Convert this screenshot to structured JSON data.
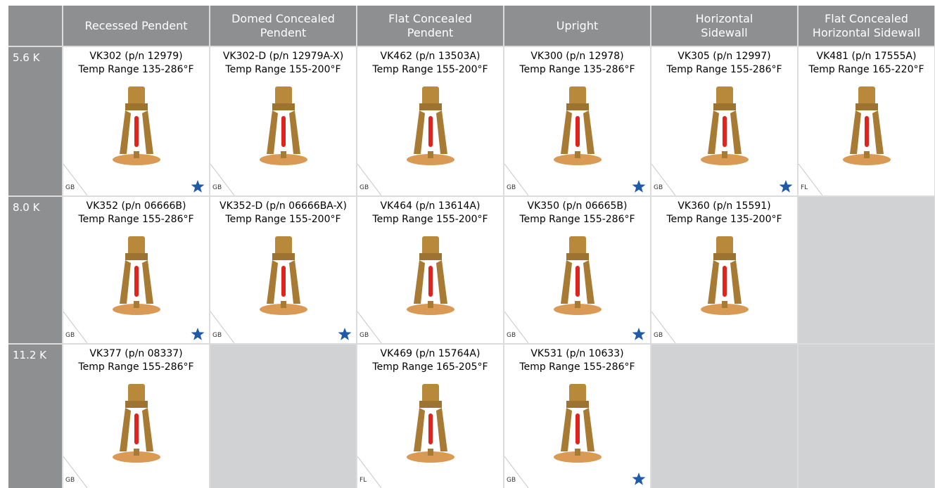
{
  "table": {
    "columns": [
      "Recessed Pendent",
      "Domed Concealed Pendent",
      "Flat Concealed Pendent",
      "Upright",
      "Horizontal Sidewall",
      "Flat Concealed Horizontal Sidewall"
    ],
    "rows": [
      {
        "label": "5.6 K",
        "cells": [
          {
            "model": "VK302 (p/n 12979)",
            "temp": "Temp Range 135-286°F",
            "tag": "GB"
          },
          {
            "model": "VK302-D (p/n 12979A-X)",
            "temp": "Temp Range 155-200°F",
            "tag": "GB"
          },
          {
            "model": "VK462 (p/n 13503A)",
            "temp": "Temp Range 155-200°F",
            "tag": "GB"
          },
          {
            "model": "VK300 (p/n 12978)",
            "temp": "Temp Range 135-286°F",
            "tag": "GB"
          },
          {
            "model": "VK305 (p/n 12997)",
            "temp": "Temp Range 155-286°F",
            "tag": "GB"
          },
          {
            "model": "VK481 (p/n 17555A)",
            "temp": "Temp Range 165-220°F",
            "tag": "FL"
          }
        ]
      },
      {
        "label": "8.0 K",
        "cells": [
          {
            "model": "VK352 (p/n 06666B)",
            "temp": "Temp Range 155-286°F",
            "tag": "GB"
          },
          {
            "model": "VK352-D (p/n 06666BA-X)",
            "temp": "Temp Range 155-200°F",
            "tag": "GB"
          },
          {
            "model": "VK464 (p/n 13614A)",
            "temp": "Temp Range 155-200°F",
            "tag": "GB"
          },
          {
            "model": "VK350 (p/n 06665B)",
            "temp": "Temp Range 155-286°F",
            "tag": "GB"
          },
          {
            "model": "VK360 (p/n 15591)",
            "temp": "Temp Range 135-200°F",
            "tag": "GB"
          },
          null
        ]
      },
      {
        "label": "11.2 K",
        "cells": [
          {
            "model": "VK377 (p/n 08337)",
            "temp": "Temp Range 155-286°F",
            "tag": "GB"
          },
          null,
          {
            "model": "VK469 (p/n 15764A)",
            "temp": "Temp Range 165-205°F",
            "tag": "FL"
          },
          {
            "model": "VK531 (p/n 10633)",
            "temp": "Temp Range 155-286°F",
            "tag": "GB"
          },
          null,
          null
        ]
      }
    ]
  }
}
